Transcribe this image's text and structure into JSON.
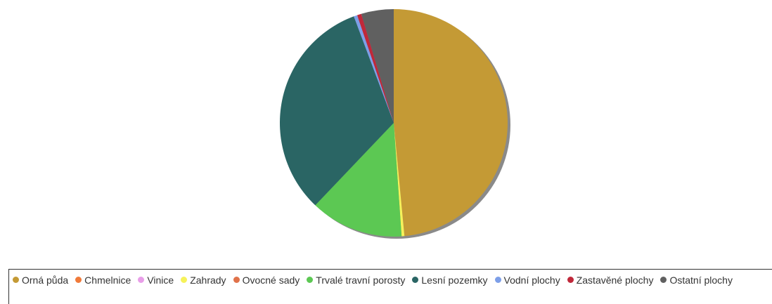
{
  "chart_data": {
    "type": "pie",
    "title": "",
    "legend_position": "bottom",
    "slices": [
      {
        "label": "Orná půda",
        "value": 48.5,
        "color": "#c49a35"
      },
      {
        "label": "Chmelnice",
        "value": 0.0,
        "color": "#f07a3a"
      },
      {
        "label": "Vinice",
        "value": 0.0,
        "color": "#e89ee8"
      },
      {
        "label": "Zahrady",
        "value": 0.4,
        "color": "#f6f25a"
      },
      {
        "label": "Ovocné sady",
        "value": 0.0,
        "color": "#e0724a"
      },
      {
        "label": "Trvalé travní porosty",
        "value": 13.2,
        "color": "#5cc853"
      },
      {
        "label": "Lesní pozemky",
        "value": 32.2,
        "color": "#2a6564"
      },
      {
        "label": "Vodní plochy",
        "value": 0.5,
        "color": "#7d9fe8"
      },
      {
        "label": "Zastavěné plochy",
        "value": 0.6,
        "color": "#c0283a"
      },
      {
        "label": "Ostatní plochy",
        "value": 4.6,
        "color": "#606060"
      }
    ]
  }
}
